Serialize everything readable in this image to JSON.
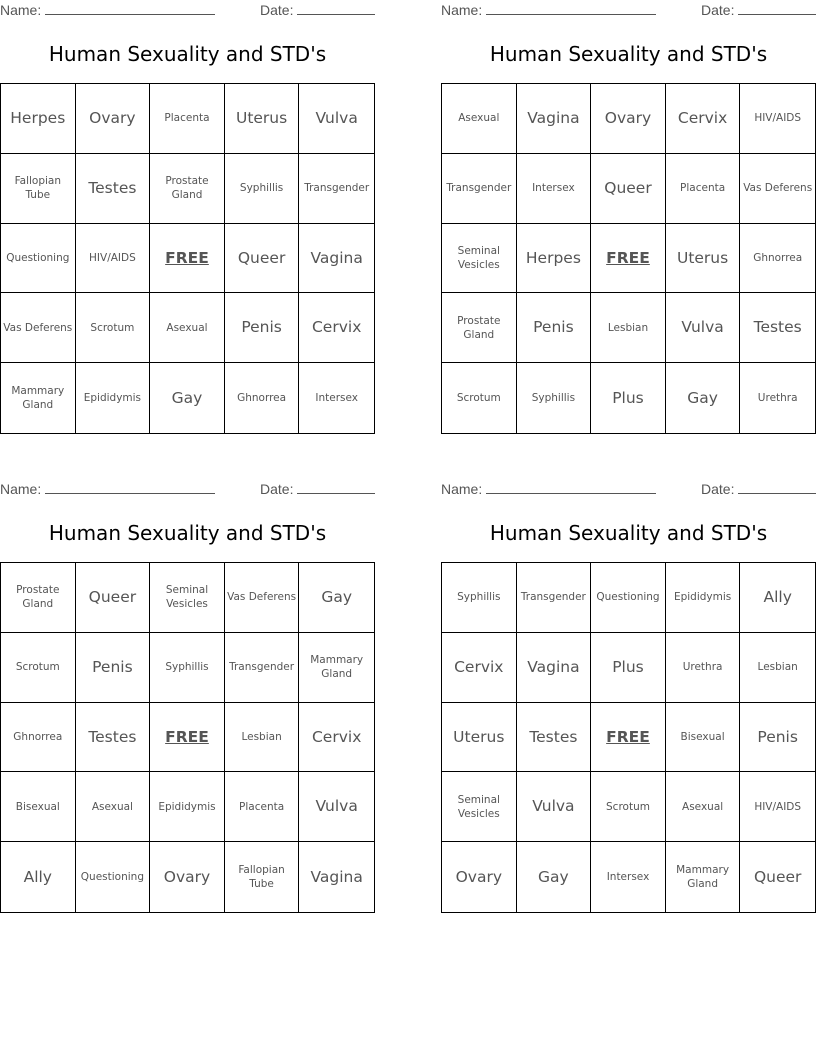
{
  "cards": [
    {
      "name_label": "Name:",
      "date_label": "Date:",
      "title": "Human Sexuality and STD's",
      "cells": [
        {
          "text": "Herpes",
          "size": "l"
        },
        {
          "text": "Ovary",
          "size": "l"
        },
        {
          "text": "Placenta",
          "size": "s"
        },
        {
          "text": "Uterus",
          "size": "l"
        },
        {
          "text": "Vulva",
          "size": "l"
        },
        {
          "text": "Fallopian Tube",
          "size": "s"
        },
        {
          "text": "Testes",
          "size": "l"
        },
        {
          "text": "Prostate Gland",
          "size": "s"
        },
        {
          "text": "Syphillis",
          "size": "s"
        },
        {
          "text": "Transgender",
          "size": "s"
        },
        {
          "text": "Questioning",
          "size": "s"
        },
        {
          "text": "HIV/AIDS",
          "size": "s"
        },
        {
          "text": "FREE",
          "size": "free"
        },
        {
          "text": "Queer",
          "size": "l"
        },
        {
          "text": "Vagina",
          "size": "l"
        },
        {
          "text": "Vas Deferens",
          "size": "s"
        },
        {
          "text": "Scrotum",
          "size": "s"
        },
        {
          "text": "Asexual",
          "size": "s"
        },
        {
          "text": "Penis",
          "size": "l"
        },
        {
          "text": "Cervix",
          "size": "l"
        },
        {
          "text": "Mammary Gland",
          "size": "s"
        },
        {
          "text": "Epididymis",
          "size": "s"
        },
        {
          "text": "Gay",
          "size": "l"
        },
        {
          "text": "Ghnorrea",
          "size": "s"
        },
        {
          "text": "Intersex",
          "size": "s"
        }
      ]
    },
    {
      "name_label": "Name:",
      "date_label": "Date:",
      "title": "Human Sexuality and STD's",
      "cells": [
        {
          "text": "Asexual",
          "size": "s"
        },
        {
          "text": "Vagina",
          "size": "l"
        },
        {
          "text": "Ovary",
          "size": "l"
        },
        {
          "text": "Cervix",
          "size": "l"
        },
        {
          "text": "HIV/AIDS",
          "size": "s"
        },
        {
          "text": "Transgender",
          "size": "s"
        },
        {
          "text": "Intersex",
          "size": "s"
        },
        {
          "text": "Queer",
          "size": "l"
        },
        {
          "text": "Placenta",
          "size": "s"
        },
        {
          "text": "Vas Deferens",
          "size": "s"
        },
        {
          "text": "Seminal Vesicles",
          "size": "s"
        },
        {
          "text": "Herpes",
          "size": "l"
        },
        {
          "text": "FREE",
          "size": "free"
        },
        {
          "text": "Uterus",
          "size": "l"
        },
        {
          "text": "Ghnorrea",
          "size": "s"
        },
        {
          "text": "Prostate Gland",
          "size": "s"
        },
        {
          "text": "Penis",
          "size": "l"
        },
        {
          "text": "Lesbian",
          "size": "s"
        },
        {
          "text": "Vulva",
          "size": "l"
        },
        {
          "text": "Testes",
          "size": "l"
        },
        {
          "text": "Scrotum",
          "size": "s"
        },
        {
          "text": "Syphillis",
          "size": "s"
        },
        {
          "text": "Plus",
          "size": "l"
        },
        {
          "text": "Gay",
          "size": "l"
        },
        {
          "text": "Urethra",
          "size": "s"
        }
      ]
    },
    {
      "name_label": "Name:",
      "date_label": "Date:",
      "title": "Human Sexuality and STD's",
      "cells": [
        {
          "text": "Prostate Gland",
          "size": "s"
        },
        {
          "text": "Queer",
          "size": "l"
        },
        {
          "text": "Seminal Vesicles",
          "size": "s"
        },
        {
          "text": "Vas Deferens",
          "size": "s"
        },
        {
          "text": "Gay",
          "size": "l"
        },
        {
          "text": "Scrotum",
          "size": "s"
        },
        {
          "text": "Penis",
          "size": "l"
        },
        {
          "text": "Syphillis",
          "size": "s"
        },
        {
          "text": "Transgender",
          "size": "s"
        },
        {
          "text": "Mammary Gland",
          "size": "s"
        },
        {
          "text": "Ghnorrea",
          "size": "s"
        },
        {
          "text": "Testes",
          "size": "l"
        },
        {
          "text": "FREE",
          "size": "free"
        },
        {
          "text": "Lesbian",
          "size": "s"
        },
        {
          "text": "Cervix",
          "size": "l"
        },
        {
          "text": "Bisexual",
          "size": "s"
        },
        {
          "text": "Asexual",
          "size": "s"
        },
        {
          "text": "Epididymis",
          "size": "s"
        },
        {
          "text": "Placenta",
          "size": "s"
        },
        {
          "text": "Vulva",
          "size": "l"
        },
        {
          "text": "Ally",
          "size": "l"
        },
        {
          "text": "Questioning",
          "size": "s"
        },
        {
          "text": "Ovary",
          "size": "l"
        },
        {
          "text": "Fallopian Tube",
          "size": "s"
        },
        {
          "text": "Vagina",
          "size": "l"
        }
      ]
    },
    {
      "name_label": "Name:",
      "date_label": "Date:",
      "title": "Human Sexuality and STD's",
      "cells": [
        {
          "text": "Syphillis",
          "size": "s"
        },
        {
          "text": "Transgender",
          "size": "s"
        },
        {
          "text": "Questioning",
          "size": "s"
        },
        {
          "text": "Epididymis",
          "size": "s"
        },
        {
          "text": "Ally",
          "size": "l"
        },
        {
          "text": "Cervix",
          "size": "l"
        },
        {
          "text": "Vagina",
          "size": "l"
        },
        {
          "text": "Plus",
          "size": "l"
        },
        {
          "text": "Urethra",
          "size": "s"
        },
        {
          "text": "Lesbian",
          "size": "s"
        },
        {
          "text": "Uterus",
          "size": "l"
        },
        {
          "text": "Testes",
          "size": "l"
        },
        {
          "text": "FREE",
          "size": "free"
        },
        {
          "text": "Bisexual",
          "size": "s"
        },
        {
          "text": "Penis",
          "size": "l"
        },
        {
          "text": "Seminal Vesicles",
          "size": "s"
        },
        {
          "text": "Vulva",
          "size": "l"
        },
        {
          "text": "Scrotum",
          "size": "s"
        },
        {
          "text": "Asexual",
          "size": "s"
        },
        {
          "text": "HIV/AIDS",
          "size": "s"
        },
        {
          "text": "Ovary",
          "size": "l"
        },
        {
          "text": "Gay",
          "size": "l"
        },
        {
          "text": "Intersex",
          "size": "s"
        },
        {
          "text": "Mammary Gland",
          "size": "s"
        },
        {
          "text": "Queer",
          "size": "l"
        }
      ]
    }
  ]
}
